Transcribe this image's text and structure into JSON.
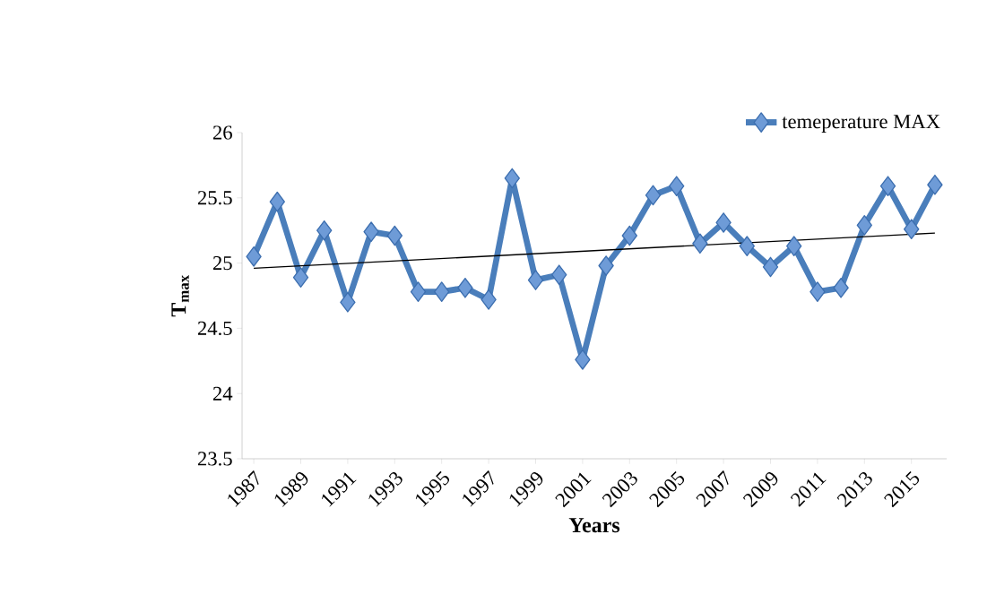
{
  "chart_data": {
    "type": "line",
    "xlabel": "Years",
    "ylabel": "T$_{max}$",
    "x": [
      1987,
      1988,
      1989,
      1990,
      1991,
      1992,
      1993,
      1994,
      1995,
      1996,
      1997,
      1998,
      1999,
      2000,
      2001,
      2002,
      2003,
      2004,
      2005,
      2006,
      2007,
      2008,
      2009,
      2010,
      2011,
      2012,
      2013,
      2014,
      2015,
      2016
    ],
    "series": [
      {
        "name": "temeperature MAX",
        "color": "#4a7ebb",
        "marker": "diamond",
        "values": [
          25.05,
          25.47,
          24.89,
          25.25,
          24.7,
          25.24,
          25.21,
          24.78,
          24.78,
          24.81,
          24.72,
          25.65,
          24.87,
          24.91,
          24.26,
          24.98,
          25.21,
          25.52,
          25.59,
          25.15,
          25.31,
          25.13,
          24.97,
          25.13,
          24.78,
          24.81,
          25.29,
          25.59,
          25.26,
          25.6
        ]
      },
      {
        "type": "line",
        "color": "#000000",
        "marker": "none",
        "x": [
          1987,
          2016
        ],
        "values": [
          24.96,
          25.23
        ]
      }
    ],
    "xlim": [
      1986.5,
      2016.5
    ],
    "xticks": [
      1987,
      1989,
      1991,
      1993,
      1995,
      1997,
      1999,
      2001,
      2003,
      2005,
      2007,
      2009,
      2011,
      2013,
      2015
    ],
    "ylim": [
      23.5,
      26
    ],
    "yticks": [
      23.5,
      24,
      24.5,
      25,
      25.5,
      26
    ],
    "grid": false,
    "legend": "top right"
  }
}
